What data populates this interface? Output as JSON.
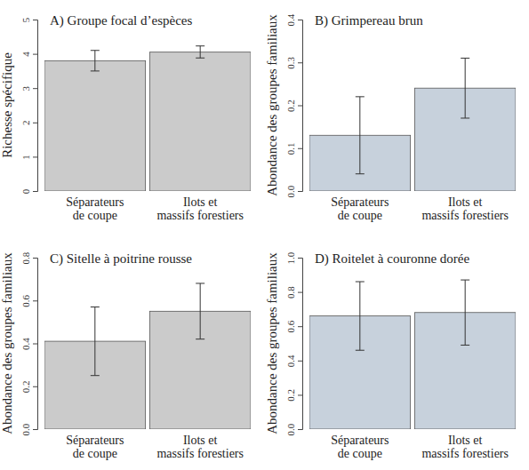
{
  "chart_data": [
    {
      "type": "bar",
      "title": "A) Groupe focal d’espèces",
      "y_label": "Richesse spécifique",
      "categories": [
        "Séparateurs\nde coupe",
        "Ilots et\nmassifs forestiers"
      ],
      "values": [
        3.8,
        4.05
      ],
      "lower": [
        3.5,
        3.88
      ],
      "upper": [
        4.1,
        4.23
      ],
      "color": "#cbcbcb",
      "ylim": [
        0,
        5
      ],
      "yticks": [
        0,
        1,
        2,
        3,
        4,
        5
      ]
    },
    {
      "type": "bar",
      "title": "B) Grimpereau brun",
      "y_label": "Abondance des groupes familiaux",
      "categories": [
        "Séparateurs\nde coupe",
        "Ilots et\nmassifs forestiers"
      ],
      "values": [
        0.13,
        0.24
      ],
      "lower": [
        0.04,
        0.17
      ],
      "upper": [
        0.22,
        0.31
      ],
      "color": "#c7d1dc",
      "ylim": [
        0,
        0.4
      ],
      "yticks": [
        {
          "value": 0,
          "label": "0.0"
        },
        {
          "value": 0.1,
          "label": "0.1"
        },
        {
          "value": 0.2,
          "label": "0.2"
        },
        {
          "value": 0.3,
          "label": "0.3"
        },
        {
          "value": 0.4,
          "label": "0.4"
        }
      ]
    },
    {
      "type": "bar",
      "title": "C) Sitelle à poitrine rousse",
      "y_label": "Abondance des groupes familiaux",
      "categories": [
        "Séparateurs\nde coupe",
        "Ilots et\nmassifs forestiers"
      ],
      "values": [
        0.41,
        0.55
      ],
      "lower": [
        0.25,
        0.42
      ],
      "upper": [
        0.57,
        0.68
      ],
      "color": "#cbcbcb",
      "ylim": [
        0,
        0.8
      ],
      "yticks": [
        {
          "value": 0,
          "label": "0.0"
        },
        {
          "value": 0.2,
          "label": "0.2"
        },
        {
          "value": 0.4,
          "label": "0.4"
        },
        {
          "value": 0.6,
          "label": "0.6"
        },
        {
          "value": 0.8,
          "label": "0.8"
        }
      ]
    },
    {
      "type": "bar",
      "title": "D) Roitelet à couronne dorée",
      "y_label": "Abondance des groupes familiaux",
      "categories": [
        "Séparateurs\nde coupe",
        "Ilots et\nmassifs forestiers"
      ],
      "values": [
        0.66,
        0.68
      ],
      "lower": [
        0.46,
        0.49
      ],
      "upper": [
        0.86,
        0.87
      ],
      "color": "#c7d1dc",
      "ylim": [
        0,
        1.0
      ],
      "yticks": [
        {
          "value": 0,
          "label": "0.0"
        },
        {
          "value": 0.2,
          "label": "0.2"
        },
        {
          "value": 0.4,
          "label": "0.4"
        },
        {
          "value": 0.6,
          "label": "0.6"
        },
        {
          "value": 0.8,
          "label": "0.8"
        },
        {
          "value": 1.0,
          "label": "1.0"
        }
      ]
    }
  ]
}
